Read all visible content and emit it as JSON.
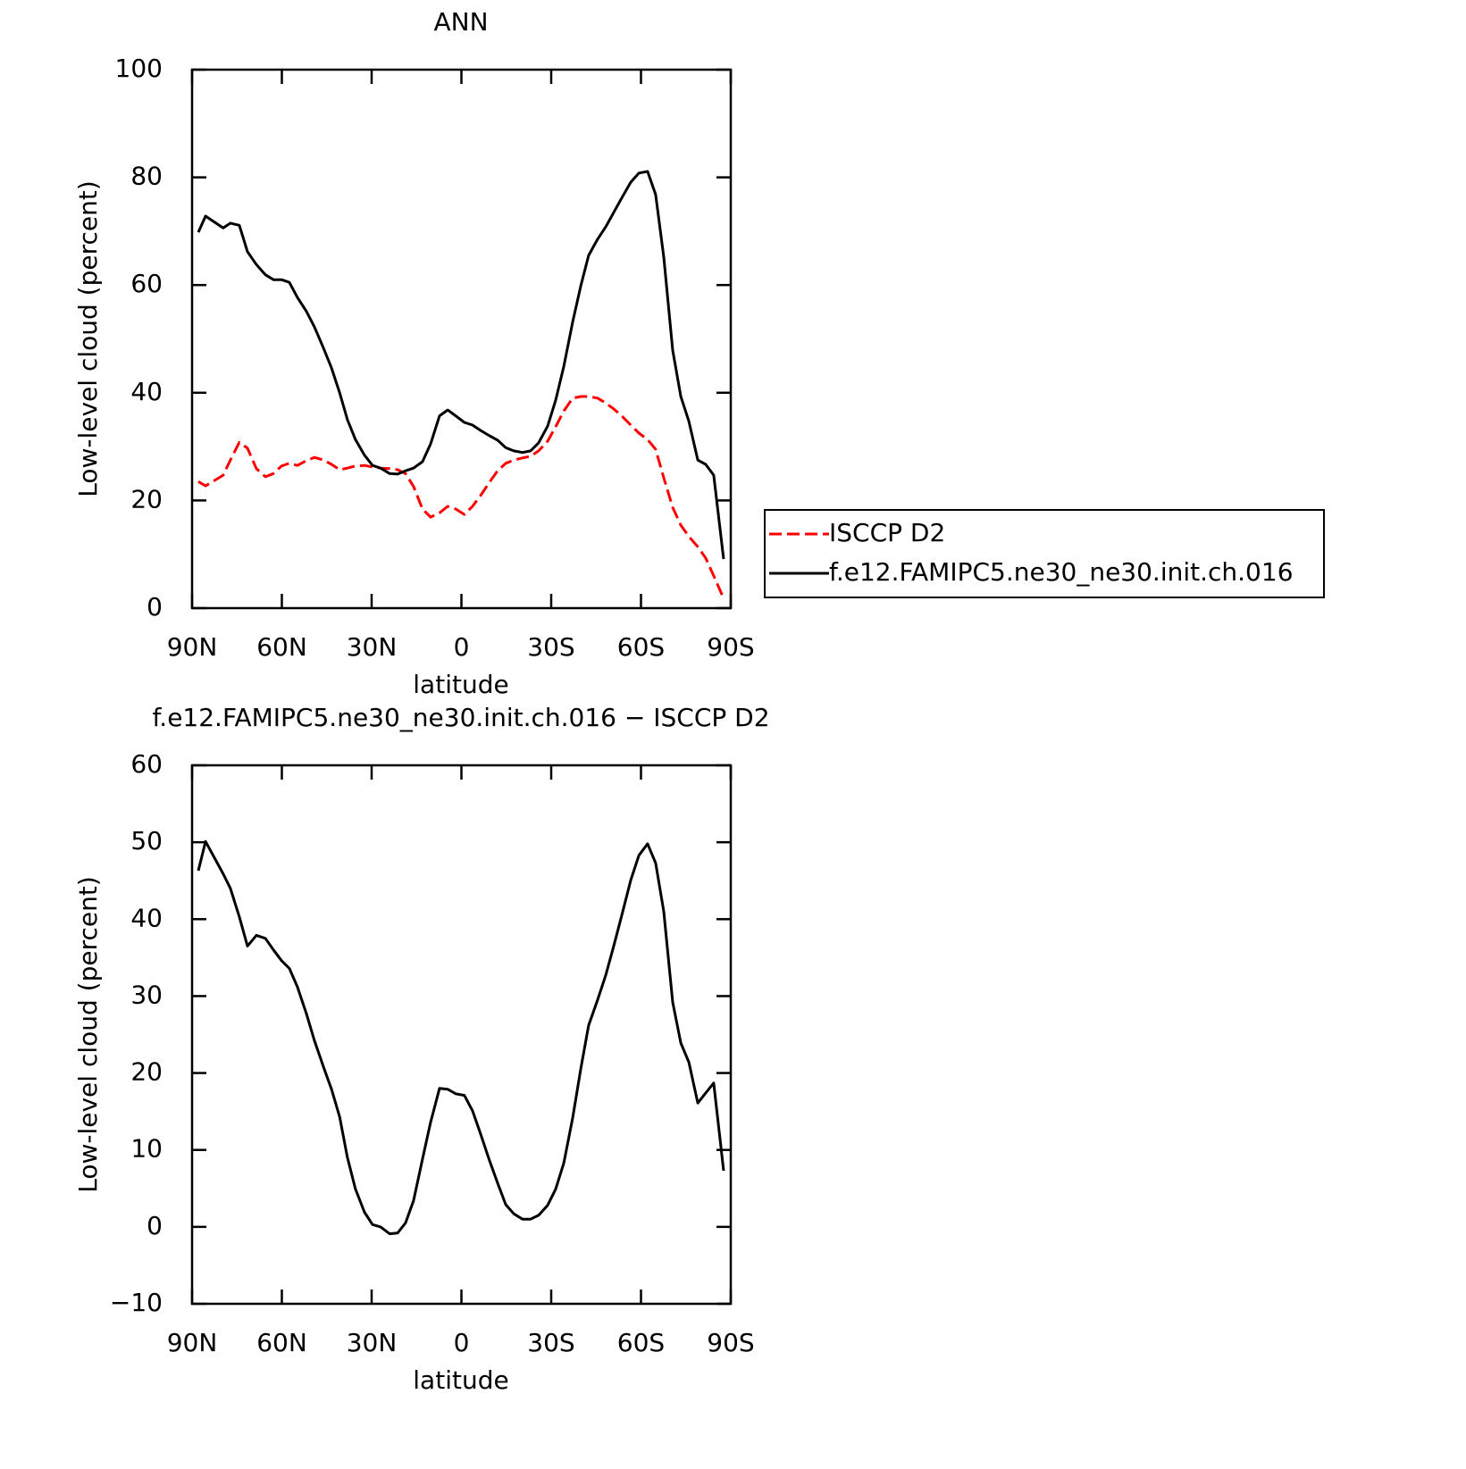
{
  "chart_data": [
    {
      "type": "line",
      "title": "ANN",
      "xlabel": "latitude",
      "ylabel": "Low-level cloud (percent)",
      "xlim": [
        90,
        -90
      ],
      "xticks": [
        {
          "value": 90,
          "label": "90N"
        },
        {
          "value": 60,
          "label": "60N"
        },
        {
          "value": 30,
          "label": "30N"
        },
        0,
        {
          "value": -30,
          "label": "30S"
        },
        {
          "value": -60,
          "label": "60S"
        },
        {
          "value": -90,
          "label": "90S"
        }
      ],
      "ylim": [
        0,
        100
      ],
      "yticks": [
        0,
        20,
        40,
        60,
        80,
        100
      ],
      "legend": "right",
      "x": [
        87.9,
        85.5,
        79.6,
        77.2,
        74.2,
        71.5,
        68.5,
        65.5,
        62.8,
        60.1,
        57.5,
        54.8,
        51.8,
        49.1,
        46.1,
        43.4,
        40.7,
        38.1,
        35.4,
        32.4,
        29.7,
        27.0,
        24.0,
        21.3,
        18.7,
        16.0,
        13.0,
        10.3,
        7.3,
        4.6,
        1.9,
        -1.0,
        -3.7,
        -6.4,
        -9.4,
        -12.1,
        -14.8,
        -17.5,
        -20.4,
        -23.1,
        -25.8,
        -28.8,
        -31.5,
        -34.2,
        -37.2,
        -39.9,
        -42.5,
        -45.5,
        -48.2,
        -50.9,
        -53.9,
        -56.6,
        -59.3,
        -62.2,
        -64.9,
        -67.6,
        -70.6,
        -73.3,
        -76.0,
        -79.0,
        -81.6,
        -84.3,
        -87.6
      ],
      "series": [
        {
          "name": "ISCCP D2",
          "color": "#ff0000",
          "dashed": true,
          "values": [
            23.5,
            22.7,
            24.7,
            27.5,
            30.8,
            29.7,
            25.9,
            24.4,
            25.0,
            26.4,
            26.9,
            26.5,
            27.4,
            28.0,
            27.5,
            26.7,
            25.7,
            26.0,
            26.4,
            26.5,
            26.2,
            26.0,
            25.9,
            25.7,
            25.0,
            22.6,
            18.4,
            16.9,
            17.7,
            18.9,
            18.4,
            17.4,
            18.9,
            20.9,
            23.4,
            25.5,
            26.9,
            27.5,
            27.9,
            28.2,
            29.2,
            31.0,
            33.7,
            36.6,
            39.0,
            39.3,
            39.3,
            39.0,
            38.1,
            37.0,
            35.5,
            34.0,
            32.5,
            31.3,
            29.5,
            24.2,
            18.7,
            15.4,
            13.3,
            11.4,
            9.3,
            6.0,
            1.8
          ]
        },
        {
          "name": "f.e12.FAMIPC5.ne30_ne30.init.ch.016",
          "color": "#000000",
          "dashed": false,
          "values": [
            69.8,
            72.8,
            70.6,
            71.5,
            71.1,
            66.2,
            63.8,
            61.9,
            61.0,
            61.0,
            60.5,
            57.7,
            55.1,
            52.2,
            48.3,
            44.6,
            40.0,
            35.0,
            31.3,
            28.4,
            26.5,
            26.0,
            25.0,
            24.9,
            25.5,
            26.0,
            27.2,
            30.5,
            35.7,
            36.8,
            35.7,
            34.5,
            34.0,
            33.0,
            32.0,
            31.2,
            29.8,
            29.2,
            28.9,
            29.2,
            30.7,
            33.8,
            38.6,
            44.9,
            53.2,
            59.9,
            65.5,
            68.5,
            70.8,
            73.5,
            76.5,
            79.1,
            80.8,
            81.1,
            76.8,
            65.2,
            47.9,
            39.3,
            34.7,
            27.5,
            26.7,
            24.7,
            9.1
          ]
        }
      ]
    },
    {
      "type": "line",
      "title": "f.e12.FAMIPC5.ne30_ne30.init.ch.016 − ISCCP D2",
      "xlabel": "latitude",
      "ylabel": "Low-level cloud (percent)",
      "xlim": [
        90,
        -90
      ],
      "xticks": [
        {
          "value": 90,
          "label": "90N"
        },
        {
          "value": 60,
          "label": "60N"
        },
        {
          "value": 30,
          "label": "30N"
        },
        0,
        {
          "value": -30,
          "label": "30S"
        },
        {
          "value": -60,
          "label": "60S"
        },
        {
          "value": -90,
          "label": "90S"
        }
      ],
      "ylim": [
        -10,
        60
      ],
      "yticks": [
        {
          "value": -10,
          "label": "−10"
        },
        0,
        10,
        20,
        30,
        40,
        50,
        60
      ],
      "x": [
        87.9,
        85.5,
        79.6,
        77.2,
        74.2,
        71.5,
        68.5,
        65.5,
        62.8,
        60.1,
        57.5,
        54.8,
        51.8,
        49.1,
        46.1,
        43.4,
        40.7,
        38.1,
        35.4,
        32.4,
        29.7,
        27.0,
        24.0,
        21.3,
        18.7,
        16.0,
        13.0,
        10.3,
        7.3,
        4.6,
        1.9,
        -1.0,
        -3.7,
        -6.4,
        -9.4,
        -12.1,
        -14.8,
        -17.5,
        -20.4,
        -23.1,
        -25.8,
        -28.8,
        -31.5,
        -34.2,
        -37.2,
        -39.9,
        -42.5,
        -45.5,
        -48.2,
        -50.9,
        -53.9,
        -56.6,
        -59.3,
        -62.2,
        -64.9,
        -67.6,
        -70.6,
        -73.3,
        -76.0,
        -79.0,
        -81.6,
        -84.3,
        -87.6
      ],
      "color": "#000000",
      "values": [
        46.3,
        50.1,
        45.9,
        44.0,
        40.3,
        36.5,
        37.9,
        37.5,
        36.0,
        34.6,
        33.6,
        31.2,
        27.7,
        24.2,
        20.8,
        17.9,
        14.3,
        9.0,
        4.9,
        1.9,
        0.3,
        0.0,
        -0.9,
        -0.8,
        0.5,
        3.4,
        8.8,
        13.6,
        18.0,
        17.9,
        17.3,
        17.1,
        15.1,
        12.1,
        8.6,
        5.7,
        2.9,
        1.7,
        1.0,
        1.0,
        1.5,
        2.8,
        4.9,
        8.3,
        14.2,
        20.6,
        26.2,
        29.5,
        32.7,
        36.5,
        41.0,
        45.1,
        48.3,
        49.8,
        47.3,
        41.0,
        29.2,
        23.9,
        21.4,
        16.1,
        17.4,
        18.7,
        7.3
      ]
    }
  ]
}
